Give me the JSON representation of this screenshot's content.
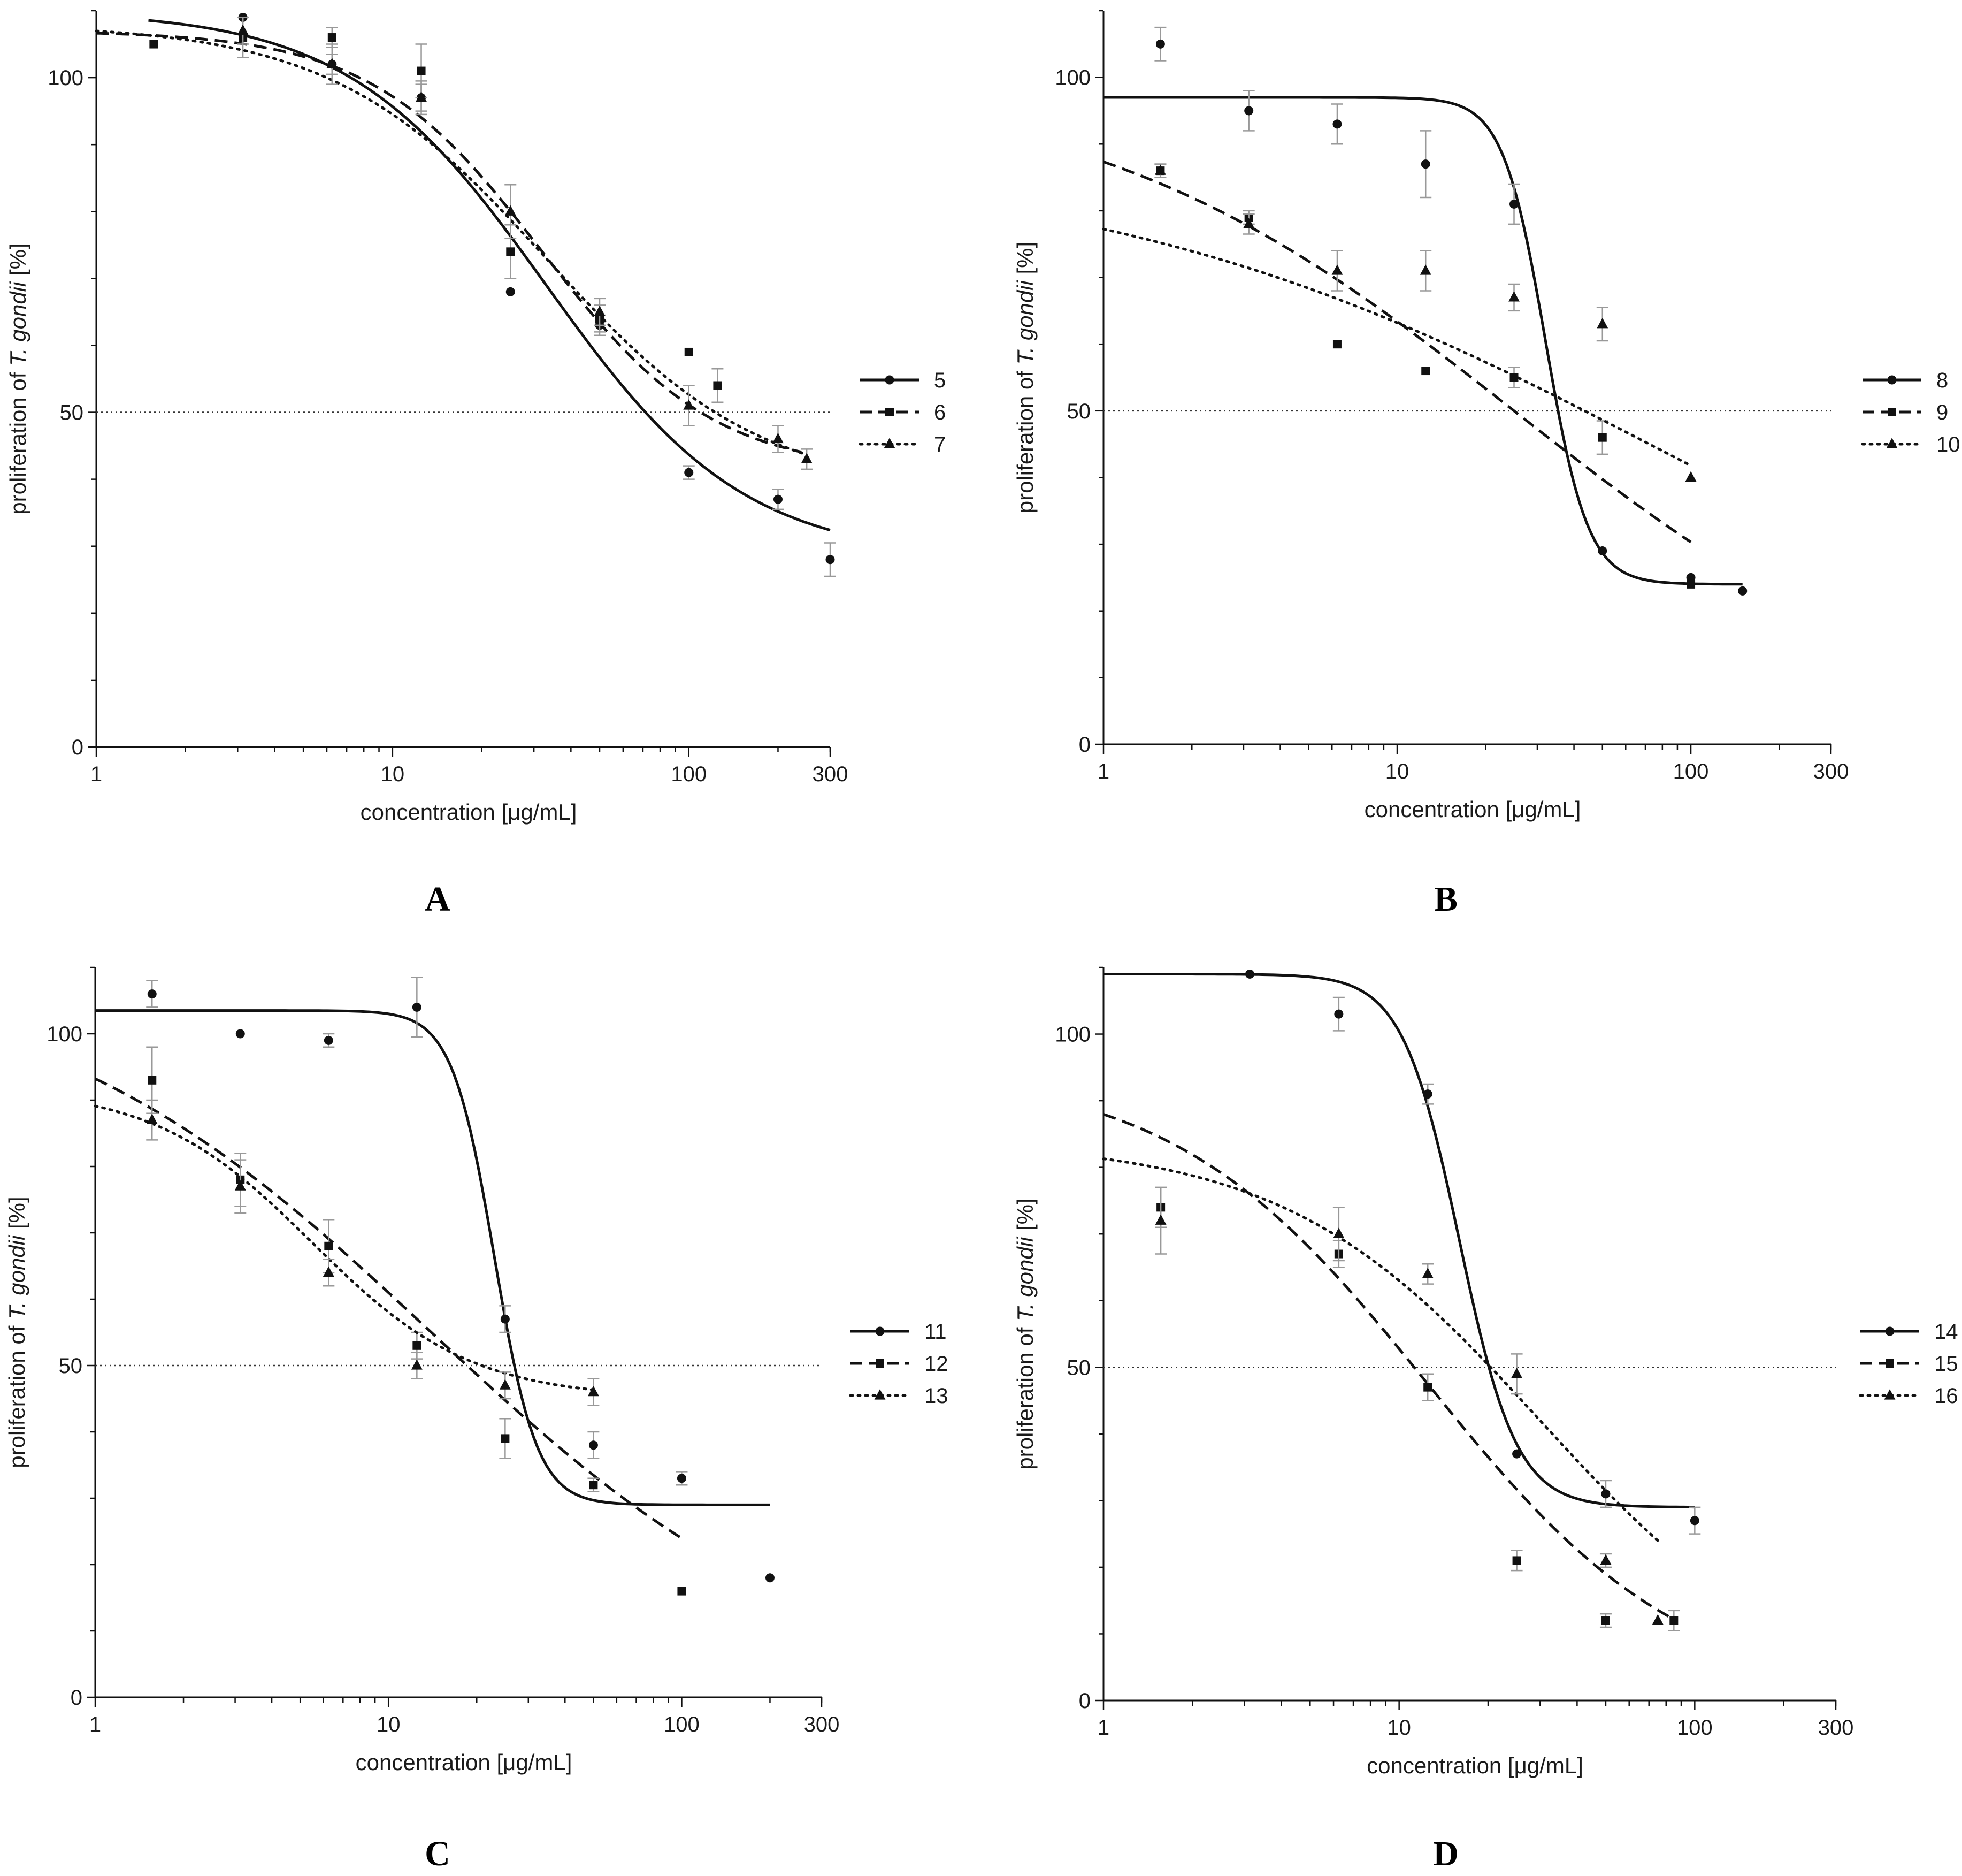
{
  "figure": {
    "panel_letters": [
      "A",
      "B",
      "C",
      "D"
    ],
    "threshold": 50
  },
  "chart_data": [
    {
      "type": "scatter",
      "panel": "A",
      "xscale": "log",
      "xlim": [
        1,
        300
      ],
      "ylim": [
        0,
        110
      ],
      "xticks": [
        1,
        10,
        100,
        300
      ],
      "xtick_labels": [
        "1",
        "10",
        "100",
        "300"
      ],
      "yticks": [
        0,
        50,
        100
      ],
      "ytick_labels": [
        "0",
        "50",
        "100"
      ],
      "xlabel": "concentration [μg/mL]",
      "ylabel_prefix": "proliferation of ",
      "ylabel_italic": "T. gondii",
      "ylabel_suffix": " [%]",
      "series": [
        {
          "name": "5",
          "marker": "circle",
          "line": "solid",
          "x": [
            3.125,
            6.25,
            12.5,
            25,
            50,
            100,
            200,
            300
          ],
          "y": [
            109,
            102,
            97,
            68,
            63,
            41,
            37,
            28
          ],
          "err": [
            0,
            1.5,
            2,
            0,
            1.5,
            1,
            1.5,
            2.5
          ],
          "curve": {
            "top": 110,
            "bottom": 28,
            "ec50": 33,
            "hill": 1.3,
            "x0": 1.5,
            "x1": 300
          }
        },
        {
          "name": "6",
          "marker": "square",
          "line": "dashed",
          "x": [
            1.5625,
            3.125,
            6.25,
            12.5,
            25,
            50,
            100,
            125
          ],
          "y": [
            105,
            106,
            106,
            101,
            74,
            64,
            59,
            54
          ],
          "err": [
            0,
            3,
            1.5,
            4,
            4,
            2,
            0,
            2.5
          ],
          "curve": {
            "top": 107,
            "bottom": 41,
            "ec50": 32,
            "hill": 1.5,
            "x0": 1,
            "x1": 240
          }
        },
        {
          "name": "7",
          "marker": "triangle",
          "line": "dotted",
          "x": [
            3.125,
            6.25,
            12.5,
            25,
            50,
            100,
            200,
            250
          ],
          "y": [
            107,
            102,
            97,
            80,
            65,
            51,
            46,
            43
          ],
          "err": [
            2,
            3,
            2.5,
            4,
            2,
            3,
            2,
            1.5
          ],
          "curve": {
            "top": 108,
            "bottom": 38,
            "ec50": 33,
            "hill": 1.2,
            "x0": 1,
            "x1": 250
          }
        }
      ]
    },
    {
      "type": "scatter",
      "panel": "B",
      "xscale": "log",
      "xlim": [
        1,
        300
      ],
      "ylim": [
        0,
        110
      ],
      "xticks": [
        1,
        10,
        100,
        300
      ],
      "xtick_labels": [
        "1",
        "10",
        "100",
        "300"
      ],
      "yticks": [
        0,
        50,
        100
      ],
      "ytick_labels": [
        "0",
        "50",
        "100"
      ],
      "xlabel": "concentration [μg/mL]",
      "ylabel_prefix": "proliferation of ",
      "ylabel_italic": "T. gondii",
      "ylabel_suffix": " [%]",
      "series": [
        {
          "name": "8",
          "marker": "circle",
          "line": "solid",
          "x": [
            1.5625,
            3.125,
            6.25,
            12.5,
            25,
            50,
            100,
            150
          ],
          "y": [
            105,
            95,
            93,
            87,
            81,
            29,
            25,
            23
          ],
          "err": [
            2.5,
            3,
            3,
            5,
            3,
            0,
            0,
            0
          ],
          "curve": {
            "top": 97,
            "bottom": 24,
            "ec50": 32,
            "hill": 6,
            "x0": 1,
            "x1": 150
          }
        },
        {
          "name": "9",
          "marker": "square",
          "line": "dashed",
          "x": [
            1.5625,
            3.125,
            6.25,
            12.5,
            25,
            50,
            100
          ],
          "y": [
            86,
            79,
            60,
            56,
            55,
            46,
            24
          ],
          "err": [
            1,
            1,
            0,
            0,
            1.5,
            2.5,
            0
          ],
          "curve": {
            "top": 100,
            "bottom": 0,
            "ec50": 25,
            "hill": 0.6,
            "x0": 1,
            "x1": 100
          }
        },
        {
          "name": "10",
          "marker": "triangle",
          "line": "dotted",
          "x": [
            1.5625,
            3.125,
            6.25,
            12.5,
            25,
            50,
            100
          ],
          "y": [
            86,
            78,
            71,
            71,
            67,
            63,
            40
          ],
          "err": [
            1,
            1.5,
            3,
            3,
            2,
            2.5,
            0
          ],
          "curve": {
            "top": 88,
            "bottom": 0,
            "ec50": 80,
            "hill": 0.45,
            "x0": 1,
            "x1": 100
          }
        }
      ]
    },
    {
      "type": "scatter",
      "panel": "C",
      "xscale": "log",
      "xlim": [
        1,
        300
      ],
      "ylim": [
        0,
        110
      ],
      "xticks": [
        1,
        10,
        100,
        300
      ],
      "xtick_labels": [
        "1",
        "10",
        "100",
        "300"
      ],
      "yticks": [
        0,
        50,
        100
      ],
      "ytick_labels": [
        "0",
        "50",
        "100"
      ],
      "xlabel": "concentration [μg/mL]",
      "ylabel_prefix": "proliferation of ",
      "ylabel_italic": "T. gondii",
      "ylabel_suffix": " [%]",
      "series": [
        {
          "name": "11",
          "marker": "circle",
          "line": "solid",
          "x": [
            1.5625,
            3.125,
            6.25,
            12.5,
            25,
            50,
            100,
            200
          ],
          "y": [
            106,
            100,
            99,
            104,
            57,
            38,
            33,
            18
          ],
          "err": [
            2,
            0,
            1,
            4.5,
            2,
            2,
            1,
            0
          ],
          "curve": {
            "top": 103.5,
            "bottom": 29,
            "ec50": 23,
            "hill": 6,
            "x0": 1,
            "x1": 200
          }
        },
        {
          "name": "12",
          "marker": "square",
          "line": "dashed",
          "x": [
            1.5625,
            3.125,
            6.25,
            12.5,
            25,
            50,
            100
          ],
          "y": [
            93,
            78,
            68,
            53,
            39,
            32,
            16
          ],
          "err": [
            5,
            4,
            4,
            2,
            3,
            1,
            0
          ],
          "curve": {
            "top": 110,
            "bottom": 0,
            "ec50": 14,
            "hill": 0.65,
            "x0": 1,
            "x1": 100
          }
        },
        {
          "name": "13",
          "marker": "triangle",
          "line": "dotted",
          "x": [
            1.5625,
            3.125,
            6.25,
            12.5,
            25,
            50
          ],
          "y": [
            87,
            77,
            64,
            50,
            47,
            46
          ],
          "err": [
            3,
            4,
            2,
            2,
            2,
            2
          ],
          "curve": {
            "top": 92,
            "bottom": 45,
            "ec50": 5.5,
            "hill": 1.6,
            "x0": 1,
            "x1": 50
          }
        }
      ]
    },
    {
      "type": "scatter",
      "panel": "D",
      "xscale": "log",
      "xlim": [
        1,
        300
      ],
      "ylim": [
        0,
        110
      ],
      "xticks": [
        1,
        10,
        100,
        300
      ],
      "xtick_labels": [
        "1",
        "10",
        "100",
        "300"
      ],
      "yticks": [
        0,
        50,
        100
      ],
      "ytick_labels": [
        "0",
        "50",
        "100"
      ],
      "xlabel": "concentration [μg/mL]",
      "ylabel_prefix": "proliferation of ",
      "ylabel_italic": "T. gondii",
      "ylabel_suffix": " [%]",
      "series": [
        {
          "name": "14",
          "marker": "circle",
          "line": "solid",
          "x": [
            3.125,
            6.25,
            12.5,
            25,
            50,
            100
          ],
          "y": [
            109,
            103,
            91,
            37,
            31,
            27
          ],
          "err": [
            0,
            2.5,
            1.5,
            0,
            2,
            2
          ],
          "curve": {
            "top": 109,
            "bottom": 29,
            "ec50": 16,
            "hill": 4.5,
            "x0": 1,
            "x1": 100
          }
        },
        {
          "name": "15",
          "marker": "square",
          "line": "dashed",
          "x": [
            1.5625,
            6.25,
            12.5,
            25,
            50,
            85
          ],
          "y": [
            74,
            67,
            47,
            21,
            12,
            12
          ],
          "err": [
            3,
            2,
            2,
            1.5,
            1,
            1.5
          ],
          "curve": {
            "top": 95,
            "bottom": 0,
            "ec50": 12.5,
            "hill": 1,
            "x0": 1,
            "x1": 85
          }
        },
        {
          "name": "16",
          "marker": "triangle",
          "line": "dotted",
          "x": [
            1.5625,
            6.25,
            12.5,
            25,
            50,
            75
          ],
          "y": [
            72,
            70,
            64,
            49,
            21,
            12
          ],
          "err": [
            5,
            4,
            1.5,
            3,
            1,
            0
          ],
          "curve": {
            "top": 84,
            "bottom": 0,
            "ec50": 30,
            "hill": 1,
            "x0": 1,
            "x1": 75
          }
        }
      ]
    }
  ]
}
